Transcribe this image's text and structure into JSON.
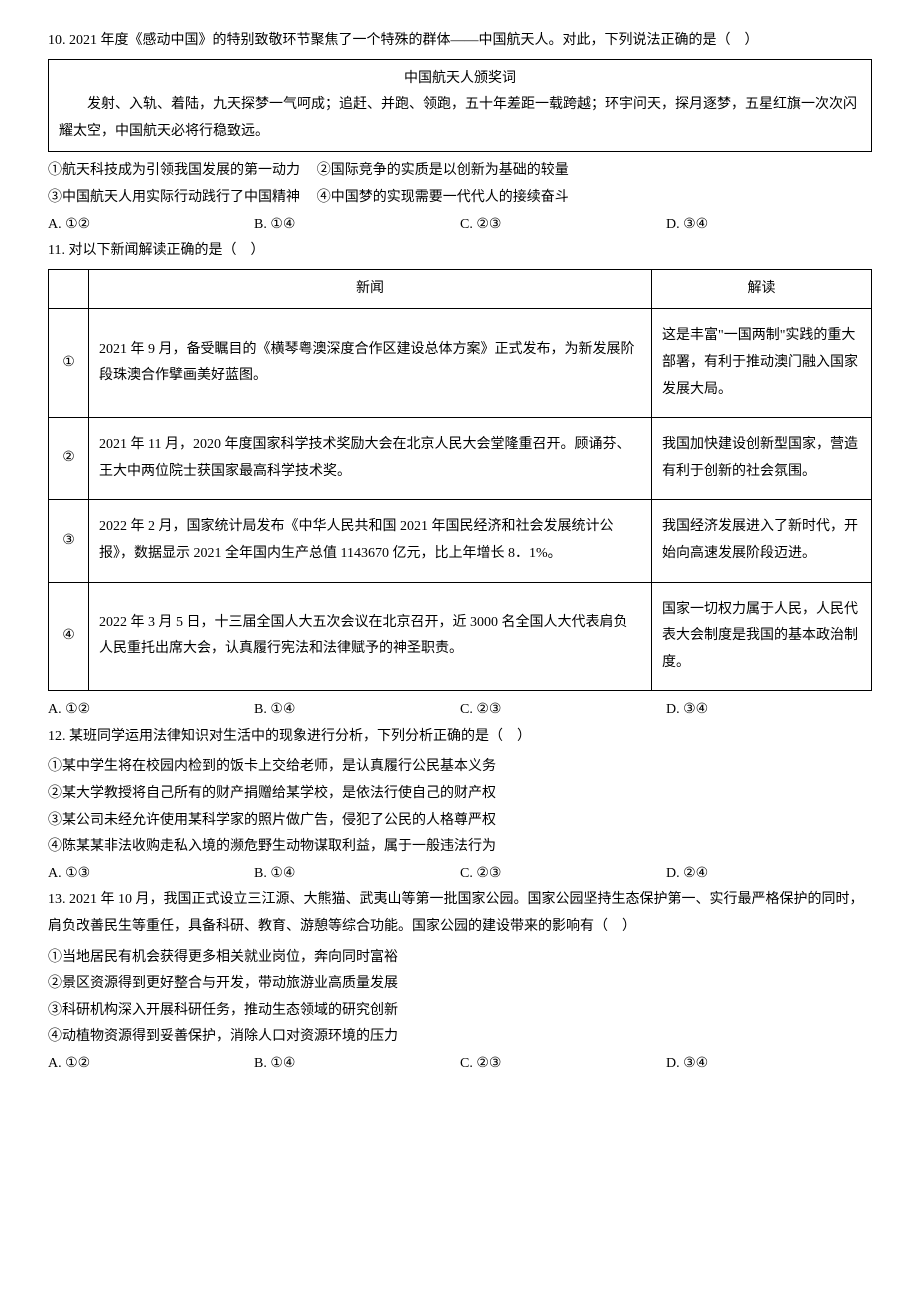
{
  "q10": {
    "stem": "10. 2021 年度《感动中国》的特别致敬环节聚焦了一个特殊的群体——中国航天人。对此，下列说法正确的是（　）",
    "box_title": "中国航天人颁奖词",
    "box_body": "发射、入轨、着陆，九天探梦一气呵成；追赶、并跑、领跑，五十年差距一载跨越；环宇问天，探月逐梦，五星红旗一次次闪耀太空，中国航天必将行稳致远。",
    "s1": "①航天科技成为引领我国发展的第一动力",
    "s2": "②国际竞争的实质是以创新为基础的较量",
    "s3": "③中国航天人用实际行动践行了中国精神",
    "s4": "④中国梦的实现需要一代代人的接续奋斗",
    "optA": "A. ①②",
    "optB": "B. ①④",
    "optC": "C. ②③",
    "optD": "D. ③④"
  },
  "q11": {
    "stem": "11. 对以下新闻解读正确的是（　）",
    "col_news": "新闻",
    "col_interp": "解读",
    "rows": [
      {
        "idx": "①",
        "news": "2021 年 9 月，备受瞩目的《横琴粤澳深度合作区建设总体方案》正式发布，为新发展阶段珠澳合作擘画美好蓝图。",
        "interp": "这是丰富\"一国两制\"实践的重大部署，有利于推动澳门融入国家发展大局。"
      },
      {
        "idx": "②",
        "news": "2021 年 11 月，2020 年度国家科学技术奖励大会在北京人民大会堂隆重召开。顾诵芬、王大中两位院士获国家最高科学技术奖。",
        "interp": "我国加快建设创新型国家，营造有利于创新的社会氛围。"
      },
      {
        "idx": "③",
        "news": "2022 年 2 月，国家统计局发布《中华人民共和国 2021 年国民经济和社会发展统计公报》，数据显示 2021 全年国内生产总值 1143670 亿元，比上年增长 8．1%。",
        "interp": "我国经济发展进入了新时代，开始向高速发展阶段迈进。"
      },
      {
        "idx": "④",
        "news": "2022 年 3 月 5 日，十三届全国人大五次会议在北京召开，近 3000 名全国人大代表肩负人民重托出席大会，认真履行宪法和法律赋予的神圣职责。",
        "interp": "国家一切权力属于人民，人民代表大会制度是我国的基本政治制度。"
      }
    ],
    "optA": "A. ①②",
    "optB": "B. ①④",
    "optC": "C. ②③",
    "optD": "D. ③④"
  },
  "q12": {
    "stem": "12. 某班同学运用法律知识对生活中的现象进行分析，下列分析正确的是（　）",
    "s1": "①某中学生将在校园内检到的饭卡上交给老师，是认真履行公民基本义务",
    "s2": "②某大学教授将自己所有的财产捐赠给某学校，是依法行使自己的财产权",
    "s3": "③某公司未经允许使用某科学家的照片做广告，侵犯了公民的人格尊严权",
    "s4": "④陈某某非法收购走私入境的濒危野生动物谋取利益，属于一般违法行为",
    "optA": "A. ①③",
    "optB": "B. ①④",
    "optC": "C. ②③",
    "optD": "D. ②④"
  },
  "q13": {
    "stem": "13. 2021 年 10 月，我国正式设立三江源、大熊猫、武夷山等第一批国家公园。国家公园坚持生态保护第一、实行最严格保护的同时，肩负改善民生等重任，具备科研、教育、游憩等综合功能。国家公园的建设带来的影响有（　）",
    "s1": "①当地居民有机会获得更多相关就业岗位，奔向同时富裕",
    "s2": "②景区资源得到更好整合与开发，带动旅游业高质量发展",
    "s3": "③科研机构深入开展科研任务，推动生态领域的研究创新",
    "s4": "④动植物资源得到妥善保护，消除人口对资源环境的压力",
    "optA": "A. ①②",
    "optB": "B. ①④",
    "optC": "C. ②③",
    "optD": "D. ③④"
  }
}
